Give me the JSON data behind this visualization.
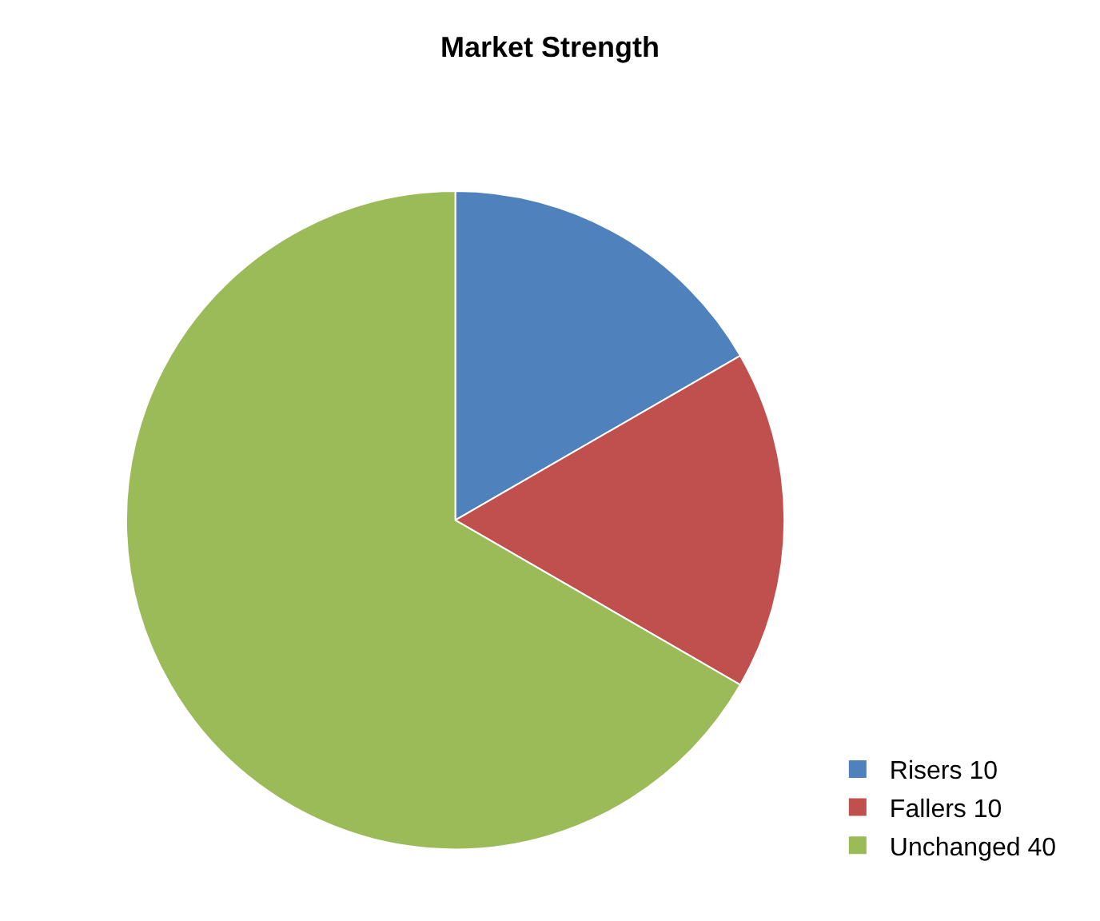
{
  "chart_data": {
    "type": "pie",
    "title": "Market Strength",
    "categories": [
      "Risers 10",
      "Fallers 10",
      "Unchanged 40"
    ],
    "values": [
      10,
      10,
      40
    ],
    "colors": [
      "#4f81bd",
      "#c0504d",
      "#9bbb59"
    ],
    "legend": "bottom right"
  }
}
